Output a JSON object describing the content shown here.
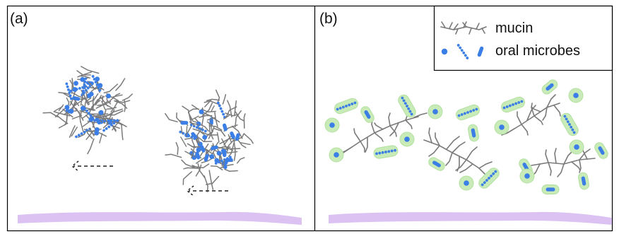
{
  "panels": {
    "a": {
      "label": "(a)"
    },
    "b": {
      "label": "(b)"
    }
  },
  "legend": {
    "mucin_label": "mucin",
    "microbes_label": "oral microbes"
  },
  "colors": {
    "mucin": "#7a7a7a",
    "microbe": "#3a7ee6",
    "halo": "#c8ebb8",
    "surface": "#dcc2f2",
    "frame": "#000000"
  }
}
